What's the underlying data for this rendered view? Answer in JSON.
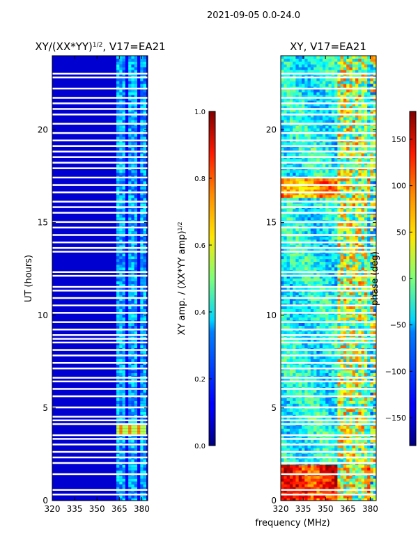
{
  "figure": {
    "suptitle": "2021-09-05 0.0-24.0",
    "xlabel_shared": "frequency (MHz)",
    "ylabel": "UT (hours)"
  },
  "chart_data": [
    {
      "type": "heatmap",
      "title": "XY/(XX*YY)",
      "title_power": "1/2",
      "title_suffix": ", V17=EA21",
      "x_ticks": [
        320,
        335,
        350,
        365,
        380
      ],
      "xlim": [
        320,
        384
      ],
      "y_ticks": [
        0,
        5,
        10,
        15,
        20
      ],
      "ylim": [
        0,
        24
      ],
      "colorbar": {
        "label": "XY amp. / (XX*YY amp)",
        "label_power": "1/2",
        "ticks": [
          "0.0",
          "0.2",
          "0.4",
          "0.6",
          "0.8",
          "1.0"
        ],
        "range": [
          0.0,
          1.0
        ]
      },
      "colormap": "jet",
      "description_bands": "low amplitude (~0.05) except 362-382 MHz (~0.25-0.4); bright band at 3.6-4.2 h"
    },
    {
      "type": "heatmap",
      "title": "XY, V17=EA21",
      "x_ticks": [
        320,
        335,
        350,
        365,
        380
      ],
      "xlim": [
        320,
        384
      ],
      "y_ticks": [
        0,
        5,
        10,
        15,
        20
      ],
      "ylim": [
        0,
        24
      ],
      "colorbar": {
        "label": "phase (deg)",
        "ticks": [
          "150",
          "100",
          "50",
          "0",
          "−50",
          "−100",
          "−150"
        ],
        "tick_values": [
          150,
          100,
          50,
          0,
          -50,
          -100,
          -150
        ],
        "range": [
          -180,
          180
        ]
      },
      "colormap": "jet"
    }
  ],
  "gaps_hours": [
    0.3,
    0.55,
    1.4,
    2.0,
    2.3,
    2.6,
    3.0,
    3.3,
    3.5,
    4.1,
    4.3,
    4.5,
    5.0,
    5.6,
    6.0,
    6.4,
    6.6,
    7.1,
    7.4,
    7.8,
    8.1,
    8.5,
    8.7,
    8.9,
    9.2,
    9.6,
    10.1,
    10.5,
    10.9,
    11.3,
    11.5,
    12.1,
    12.3,
    13.4,
    13.6,
    13.9,
    14.3,
    14.7,
    15.0,
    15.5,
    15.8,
    16.1,
    16.6,
    17.0,
    17.4,
    17.9,
    18.2,
    18.5,
    18.8,
    19.1,
    19.4,
    19.8,
    20.3,
    20.8,
    21.1,
    21.4,
    21.7,
    22.2,
    22.8,
    23.0
  ]
}
